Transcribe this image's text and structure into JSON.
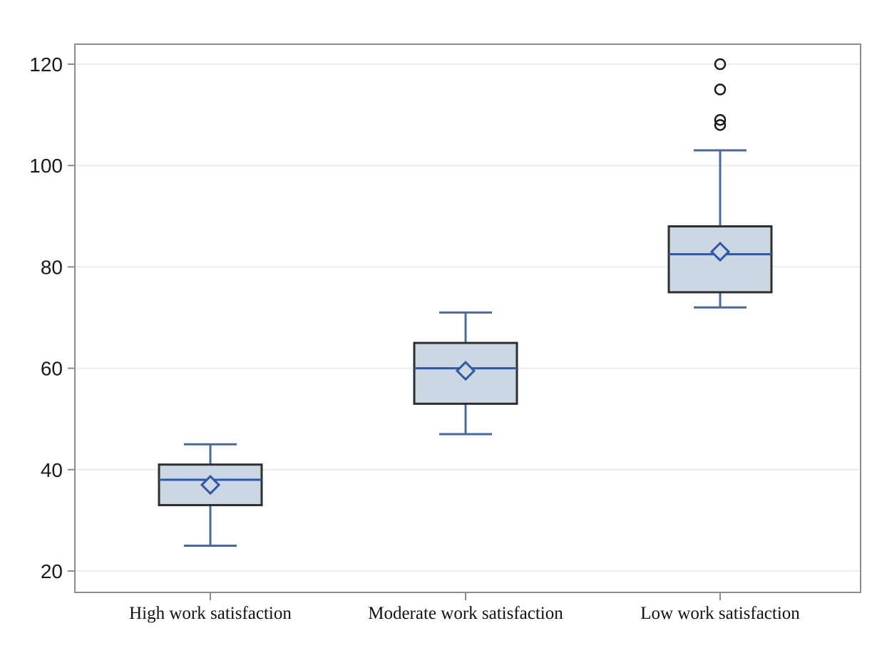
{
  "chart_data": {
    "type": "box",
    "title": "",
    "xlabel": "",
    "ylabel": "",
    "ylim": [
      20,
      120
    ],
    "yticks": [
      20,
      40,
      60,
      80,
      100,
      120
    ],
    "grid": "horizontal",
    "legend": "none",
    "categories": [
      "High work satisfaction",
      "Moderate work satisfaction",
      "Low work satisfaction"
    ],
    "series": [
      {
        "category": "High work satisfaction",
        "min": 25,
        "q1": 33,
        "median": 38,
        "q3": 41,
        "max": 45,
        "mean": 37,
        "outliers": []
      },
      {
        "category": "Moderate work satisfaction",
        "min": 47,
        "q1": 53,
        "median": 60,
        "q3": 65,
        "max": 71,
        "mean": 59.5,
        "outliers": []
      },
      {
        "category": "Low work satisfaction",
        "min": 72,
        "q1": 75,
        "median": 82.5,
        "q3": 88,
        "max": 103,
        "mean": 83,
        "outliers": [
          108,
          109,
          115,
          120
        ]
      }
    ],
    "colors": {
      "box_fill": "#ccd7e4",
      "box_border": "#2e2e2e",
      "median_line": "#3156a4",
      "whisker_line": "#4a689c",
      "mean_marker": "#3156a4",
      "outlier_stroke": "#1a1a1a",
      "gridline": "#ececec",
      "frame": "#8d8d8d",
      "tick": "#8d8d8d",
      "tick_label": "#1a1a1a",
      "background": "#ffffff"
    }
  }
}
